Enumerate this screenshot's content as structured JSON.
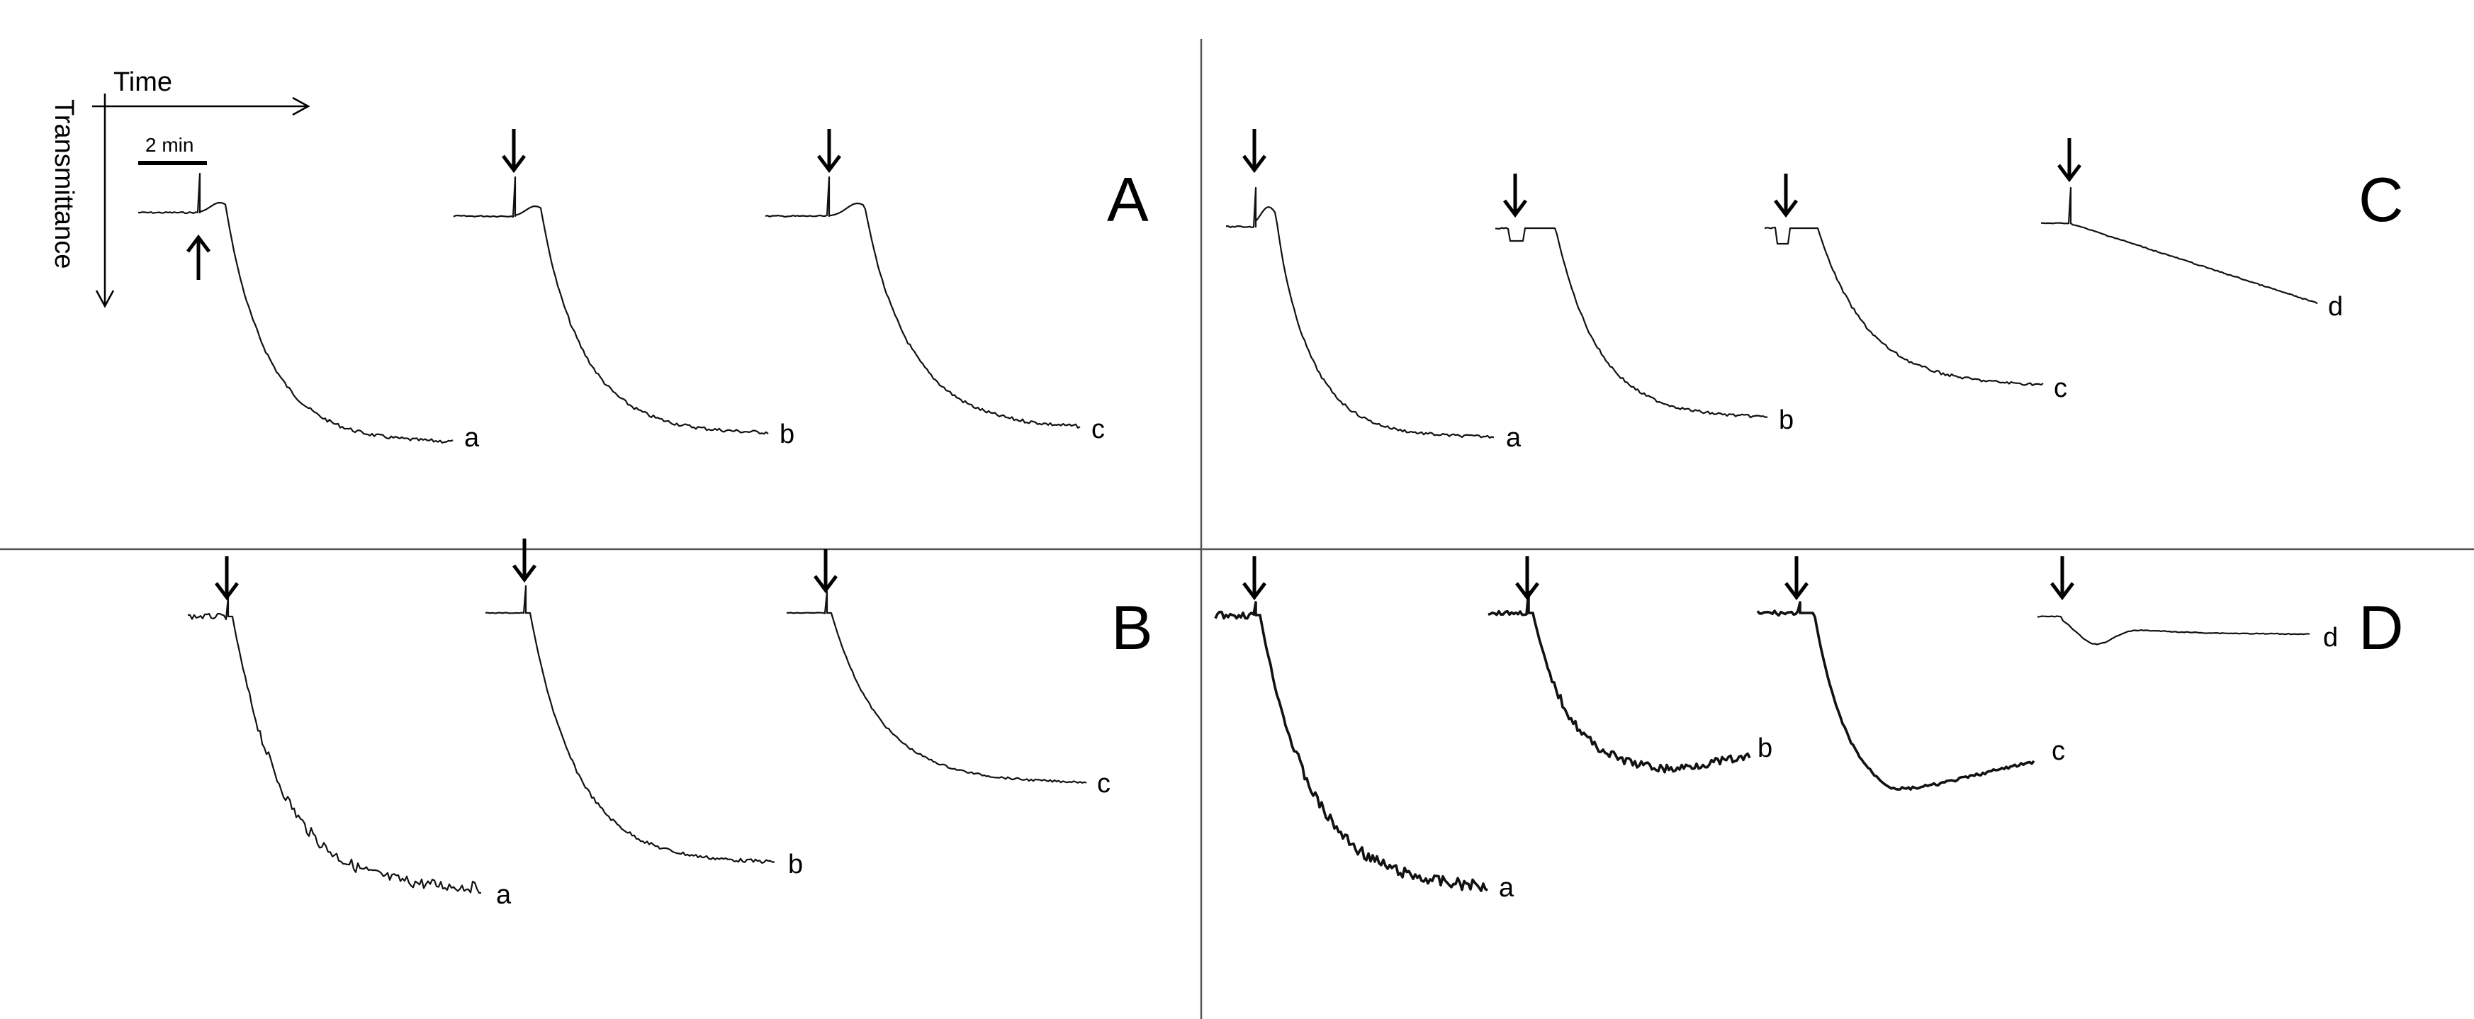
{
  "axes": {
    "x_label": "Time",
    "y_label": "Transmittance",
    "scale_bar": "2 min"
  },
  "chart_data": [
    {
      "panel": "A",
      "type": "line",
      "traces": [
        {
          "label": "a"
        },
        {
          "label": "b"
        },
        {
          "label": "c"
        }
      ]
    },
    {
      "panel": "B",
      "type": "line",
      "traces": [
        {
          "label": "a"
        },
        {
          "label": "b"
        },
        {
          "label": "c"
        }
      ]
    },
    {
      "panel": "C",
      "type": "line",
      "traces": [
        {
          "label": "a"
        },
        {
          "label": "b"
        },
        {
          "label": "c"
        },
        {
          "label": "d"
        }
      ]
    },
    {
      "panel": "D",
      "type": "line",
      "traces": [
        {
          "label": "a"
        },
        {
          "label": "b"
        },
        {
          "label": "c"
        },
        {
          "label": "d"
        }
      ]
    }
  ]
}
